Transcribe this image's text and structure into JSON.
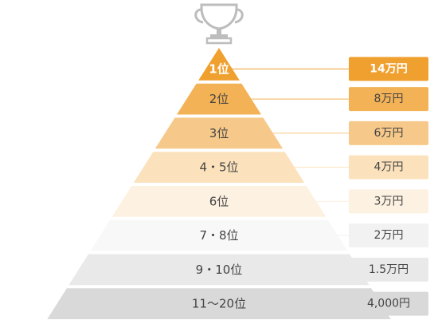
{
  "trophy_icon": "trophy-icon",
  "tiers": [
    {
      "rank": "1位",
      "prize": "14万円",
      "fill": "#f0a02e",
      "box_fill": "#f0a02e",
      "top": true
    },
    {
      "rank": "2位",
      "prize": "8万円",
      "fill": "#f3b255",
      "box_fill": "#f3b255"
    },
    {
      "rank": "3位",
      "prize": "6万円",
      "fill": "#f6c98a",
      "box_fill": "#f6c98a"
    },
    {
      "rank": "4・5位",
      "prize": "4万円",
      "fill": "#fbe2bc",
      "box_fill": "#fbe2bc"
    },
    {
      "rank": "6位",
      "prize": "3万円",
      "fill": "#fdf1e1",
      "box_fill": "#fdf1e1"
    },
    {
      "rank": "7・8位",
      "prize": "2万円",
      "fill": "#f8f8f8",
      "box_fill": "#f2f2f2"
    },
    {
      "rank": "9・10位",
      "prize": "1.5万円",
      "fill": "#e9e9e9",
      "box_fill": "#e9e9e9"
    },
    {
      "rank": "11〜20位",
      "prize": "4,000円",
      "fill": "#d9d9d9",
      "box_fill": "#d9d9d9"
    }
  ]
}
